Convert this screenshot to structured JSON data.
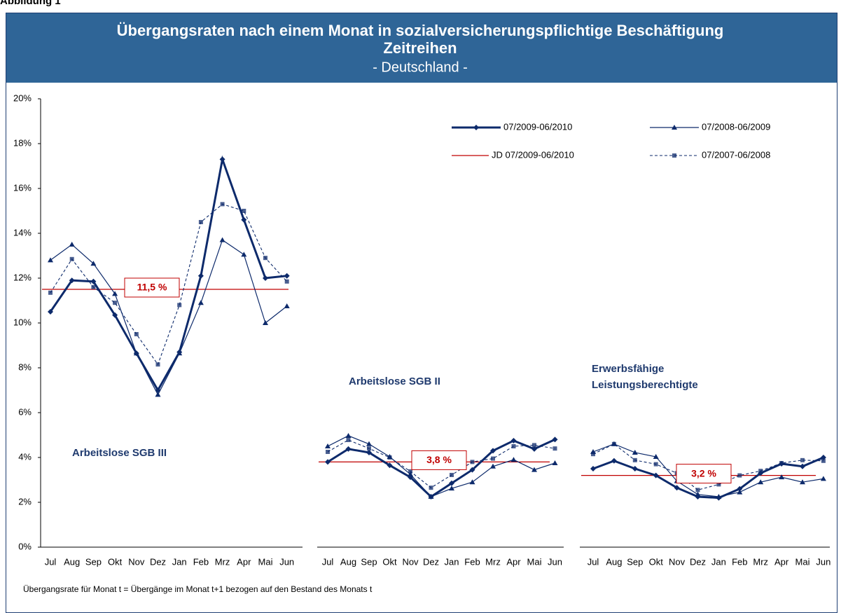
{
  "figure_label": "Abbildung 1",
  "title": "Übergangsraten nach einem Monat in sozialversicherungspflichtige Beschäftigung",
  "subtitle": "Zeitreihen",
  "region": "- Deutschland -",
  "footnote": "Übergangsrate für Monat t = Übergänge im Monat t+1 bezogen auf den Bestand des Monats t",
  "chart_data": [
    {
      "type": "line",
      "label": [
        "Arbeitslose SGB III"
      ],
      "categories": [
        "Jul",
        "Aug",
        "Sep",
        "Okt",
        "Nov",
        "Dez",
        "Jan",
        "Feb",
        "Mrz",
        "Apr",
        "Mai",
        "Jun"
      ],
      "ylim": [
        0,
        20
      ],
      "yticks": [
        {
          "value": 0,
          "label": "0%"
        },
        {
          "value": 2,
          "label": "2%"
        },
        {
          "value": 4,
          "label": "4%"
        },
        {
          "value": 6,
          "label": "6%"
        },
        {
          "value": 8,
          "label": "8%"
        },
        {
          "value": 10,
          "label": "10%"
        },
        {
          "value": 12,
          "label": "12%"
        },
        {
          "value": 14,
          "label": "14%"
        },
        {
          "value": 16,
          "label": "16%"
        },
        {
          "value": 18,
          "label": "18%"
        },
        {
          "value": 20,
          "label": "20%"
        }
      ],
      "series": [
        {
          "name": "07/2009-06/2010",
          "color": "#0d2a6b",
          "style": "thick",
          "marker": "diamond",
          "values": [
            10.5,
            11.9,
            11.85,
            10.35,
            8.65,
            7.0,
            8.7,
            12.1,
            17.3,
            14.6,
            12.0,
            12.1
          ]
        },
        {
          "name": "07/2008-06/2009",
          "color": "#0d2a6b",
          "style": "thin",
          "marker": "triangle",
          "values": [
            12.8,
            13.5,
            12.65,
            11.3,
            8.65,
            6.8,
            8.65,
            10.9,
            13.7,
            13.05,
            10.0,
            10.75
          ]
        },
        {
          "name": "07/2007-06/2008",
          "color": "#0d2a6b",
          "style": "dashed",
          "marker": "square",
          "values": [
            11.35,
            12.85,
            11.6,
            10.9,
            9.5,
            8.15,
            10.8,
            14.5,
            15.3,
            15.0,
            12.9,
            11.85
          ]
        }
      ],
      "reference": {
        "name": "JD 07/2009-06/2010",
        "color": "#c00000",
        "value": 11.5,
        "label": "11,5 %"
      }
    },
    {
      "type": "line",
      "label": [
        "Arbeitslose SGB II"
      ],
      "categories": [
        "Jul",
        "Aug",
        "Sep",
        "Okt",
        "Nov",
        "Dez",
        "Jan",
        "Feb",
        "Mrz",
        "Apr",
        "Mai",
        "Jun"
      ],
      "ylim": [
        0,
        20
      ],
      "series": [
        {
          "color": "#0d2a6b",
          "style": "thick",
          "marker": "diamond",
          "values": [
            3.8,
            4.38,
            4.22,
            3.65,
            3.12,
            2.25,
            2.85,
            3.45,
            4.3,
            4.75,
            4.38,
            4.8
          ]
        },
        {
          "color": "#0d2a6b",
          "style": "thin",
          "marker": "triangle",
          "values": [
            4.5,
            4.97,
            4.6,
            4.03,
            3.25,
            2.25,
            2.62,
            2.9,
            3.6,
            3.9,
            3.45,
            3.75
          ]
        },
        {
          "color": "#0d2a6b",
          "style": "dashed",
          "marker": "square",
          "values": [
            4.25,
            4.78,
            4.4,
            4.0,
            3.38,
            2.65,
            3.22,
            3.8,
            3.95,
            4.5,
            4.55,
            4.4
          ]
        }
      ],
      "reference": {
        "color": "#c00000",
        "value": 3.8,
        "label": "3,8 %"
      }
    },
    {
      "type": "line",
      "label": [
        "Erwerbsfähige",
        "Leistungsberechtigte"
      ],
      "categories": [
        "Jul",
        "Aug",
        "Sep",
        "Okt",
        "Nov",
        "Dez",
        "Jan",
        "Feb",
        "Mrz",
        "Apr",
        "Mai",
        "Jun"
      ],
      "ylim": [
        0,
        20
      ],
      "series": [
        {
          "color": "#0d2a6b",
          "style": "thick",
          "marker": "diamond",
          "values": [
            3.5,
            3.85,
            3.5,
            3.2,
            2.65,
            2.25,
            2.2,
            2.6,
            3.3,
            3.72,
            3.6,
            4.0
          ]
        },
        {
          "color": "#0d2a6b",
          "style": "thin",
          "marker": "triangle",
          "values": [
            4.25,
            4.6,
            4.22,
            4.03,
            2.95,
            2.35,
            2.25,
            2.45,
            2.9,
            3.12,
            2.9,
            3.05
          ]
        },
        {
          "color": "#0d2a6b",
          "style": "dashed",
          "marker": "square",
          "values": [
            4.15,
            4.6,
            3.88,
            3.7,
            3.3,
            2.55,
            2.8,
            3.2,
            3.4,
            3.75,
            3.88,
            3.85
          ]
        }
      ],
      "reference": {
        "color": "#c00000",
        "value": 3.2,
        "label": "3,2 %"
      }
    }
  ]
}
